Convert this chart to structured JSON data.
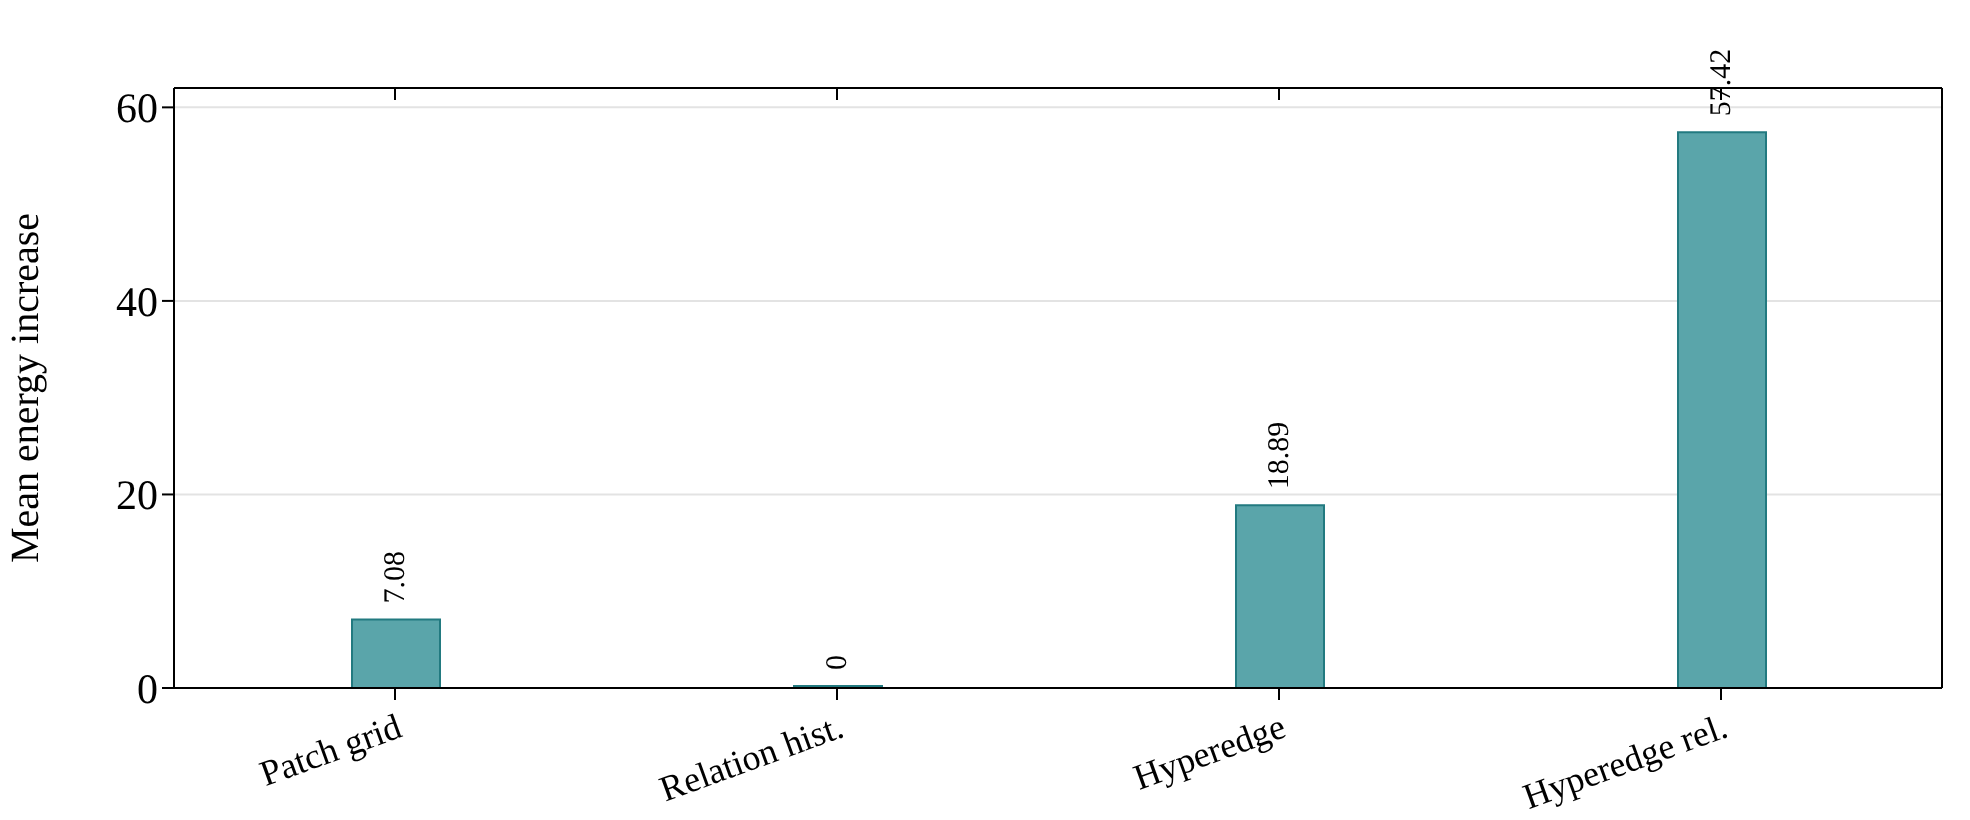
{
  "chart_data": {
    "type": "bar",
    "ylabel": "Mean energy increase",
    "categories": [
      "Patch grid",
      "Relation hist.",
      "Hyperedge",
      "Hyperedge rel."
    ],
    "values": [
      7.08,
      0,
      18.89,
      57.42
    ],
    "color": "#5aa5aa",
    "ylim": [
      0,
      62
    ],
    "yticks": [
      0,
      20,
      40,
      60
    ],
    "grid": "y",
    "data_labels": true
  }
}
